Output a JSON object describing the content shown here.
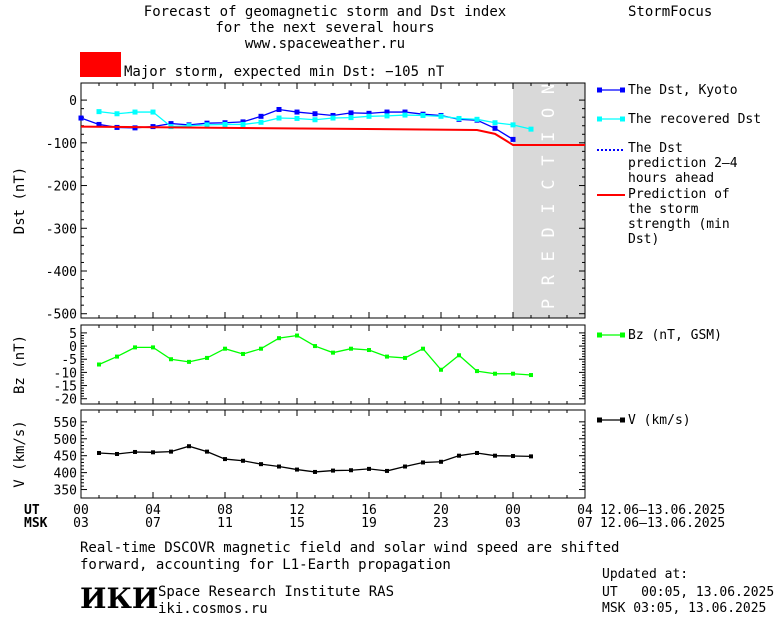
{
  "header": {
    "title_lines": [
      "Forecast of geomagnetic storm and Dst index",
      "for the next several hours",
      "www.spaceweather.ru"
    ],
    "brand": "StormFocus",
    "storm_label": "Major storm, expected min Dst: −105 nT",
    "storm_color": "#ff0000"
  },
  "chart_data": [
    {
      "type": "line",
      "name": "dst-panel",
      "ylabel": "Dst (nT)",
      "ylim": [
        -510,
        40
      ],
      "yticks": [
        0,
        -100,
        -200,
        -300,
        -400,
        -500
      ],
      "xlim": [
        0,
        28
      ],
      "prediction_region": [
        24,
        28
      ],
      "prediction_text": "PREDICTION",
      "series": [
        {
          "name": "The Dst, Kyoto",
          "color": "#0000ff",
          "x": [
            0,
            1,
            2,
            3,
            4,
            5,
            6,
            7,
            8,
            9,
            10,
            11,
            12,
            13,
            14,
            15,
            16,
            17,
            18,
            19,
            20,
            21,
            22,
            23,
            24
          ],
          "y": [
            -42,
            -57,
            -64,
            -65,
            -62,
            -55,
            -58,
            -54,
            -53,
            -51,
            -38,
            -22,
            -28,
            -32,
            -36,
            -30,
            -31,
            -28,
            -28,
            -33,
            -36,
            -45,
            -47,
            -66,
            -92
          ]
        },
        {
          "name": "The recovered Dst",
          "color": "#00ffff",
          "x": [
            1,
            2,
            3,
            4,
            5,
            6,
            7,
            8,
            9,
            10,
            11,
            12,
            13,
            14,
            15,
            16,
            17,
            18,
            19,
            20,
            21,
            22,
            23,
            24,
            25
          ],
          "y": [
            -27,
            -32,
            -28,
            -28,
            -62,
            -60,
            -58,
            -57,
            -57,
            -52,
            -42,
            -43,
            -46,
            -42,
            -41,
            -38,
            -37,
            -35,
            -36,
            -38,
            -43,
            -45,
            -53,
            -58,
            -68
          ]
        },
        {
          "name": "The Dst prediction 2–4 hours ahead",
          "color": "#0000ff",
          "dotted": true,
          "x": [
            24,
            25,
            26,
            27,
            28
          ],
          "y": [
            -105,
            -105,
            -105,
            -105,
            -105
          ]
        },
        {
          "name": "Prediction of the storm strength (min Dst)",
          "color": "#ff0000",
          "x": [
            0,
            22,
            23,
            24,
            28
          ],
          "y": [
            -62,
            -70,
            -79,
            -105,
            -105
          ]
        }
      ]
    },
    {
      "type": "line",
      "name": "bz-panel",
      "ylabel": "Bz (nT)",
      "ylim": [
        -22,
        8
      ],
      "yticks": [
        5,
        0,
        -5,
        -10,
        -15,
        -20
      ],
      "xlim": [
        0,
        28
      ],
      "series": [
        {
          "name": "Bz (nT, GSM)",
          "color": "#00ff00",
          "x": [
            1,
            2,
            3,
            4,
            5,
            6,
            7,
            8,
            9,
            10,
            11,
            12,
            13,
            14,
            15,
            16,
            17,
            18,
            19,
            20,
            21,
            22,
            23,
            24,
            25
          ],
          "y": [
            -7,
            -4,
            -0.5,
            -0.5,
            -5,
            -6,
            -4.5,
            -1,
            -3,
            -1,
            3,
            4,
            0,
            -2.5,
            -1,
            -1.5,
            -4,
            -4.5,
            -1,
            -9,
            -3.5,
            -9.5,
            -10.5,
            -10.5,
            -11
          ]
        }
      ]
    },
    {
      "type": "line",
      "name": "v-panel",
      "ylabel": "V (km/s)",
      "ylim": [
        325,
        585
      ],
      "yticks": [
        550,
        500,
        450,
        400,
        350
      ],
      "xlim": [
        0,
        28
      ],
      "series": [
        {
          "name": "V (km/s)",
          "color": "#000000",
          "x": [
            1,
            2,
            3,
            4,
            5,
            6,
            7,
            8,
            9,
            10,
            11,
            12,
            13,
            14,
            15,
            16,
            17,
            18,
            19,
            20,
            21,
            22,
            23,
            24,
            25
          ],
          "y": [
            458,
            455,
            461,
            460,
            462,
            478,
            462,
            440,
            435,
            425,
            418,
            409,
            402,
            406,
            407,
            411,
            405,
            418,
            430,
            432,
            450,
            458,
            450,
            449,
            448
          ]
        }
      ]
    }
  ],
  "x_axis": {
    "ut_label": "UT",
    "msk_label": "MSK",
    "ut_ticks": [
      "00",
      "04",
      "08",
      "12",
      "16",
      "20",
      "00",
      "04"
    ],
    "msk_ticks": [
      "03",
      "07",
      "11",
      "15",
      "19",
      "23",
      "03",
      "07"
    ],
    "tick_hours": [
      0,
      4,
      8,
      12,
      16,
      20,
      24,
      28
    ],
    "ut_range": "12.06–13.06.2025",
    "msk_range": "12.06–13.06.2025"
  },
  "footer": {
    "note_lines": [
      "Real-time DSCOVR magnetic field and solar wind speed are shifted",
      "forward, accounting for L1-Earth propagation"
    ],
    "logo_text": "ИКИ",
    "institute": "Space Research Institute RAS",
    "site": "iki.cosmos.ru",
    "updated_label": "Updated at:",
    "updated_ut": "UT   00:05, 13.06.2025",
    "updated_msk": "MSK 03:05, 13.06.2025"
  }
}
